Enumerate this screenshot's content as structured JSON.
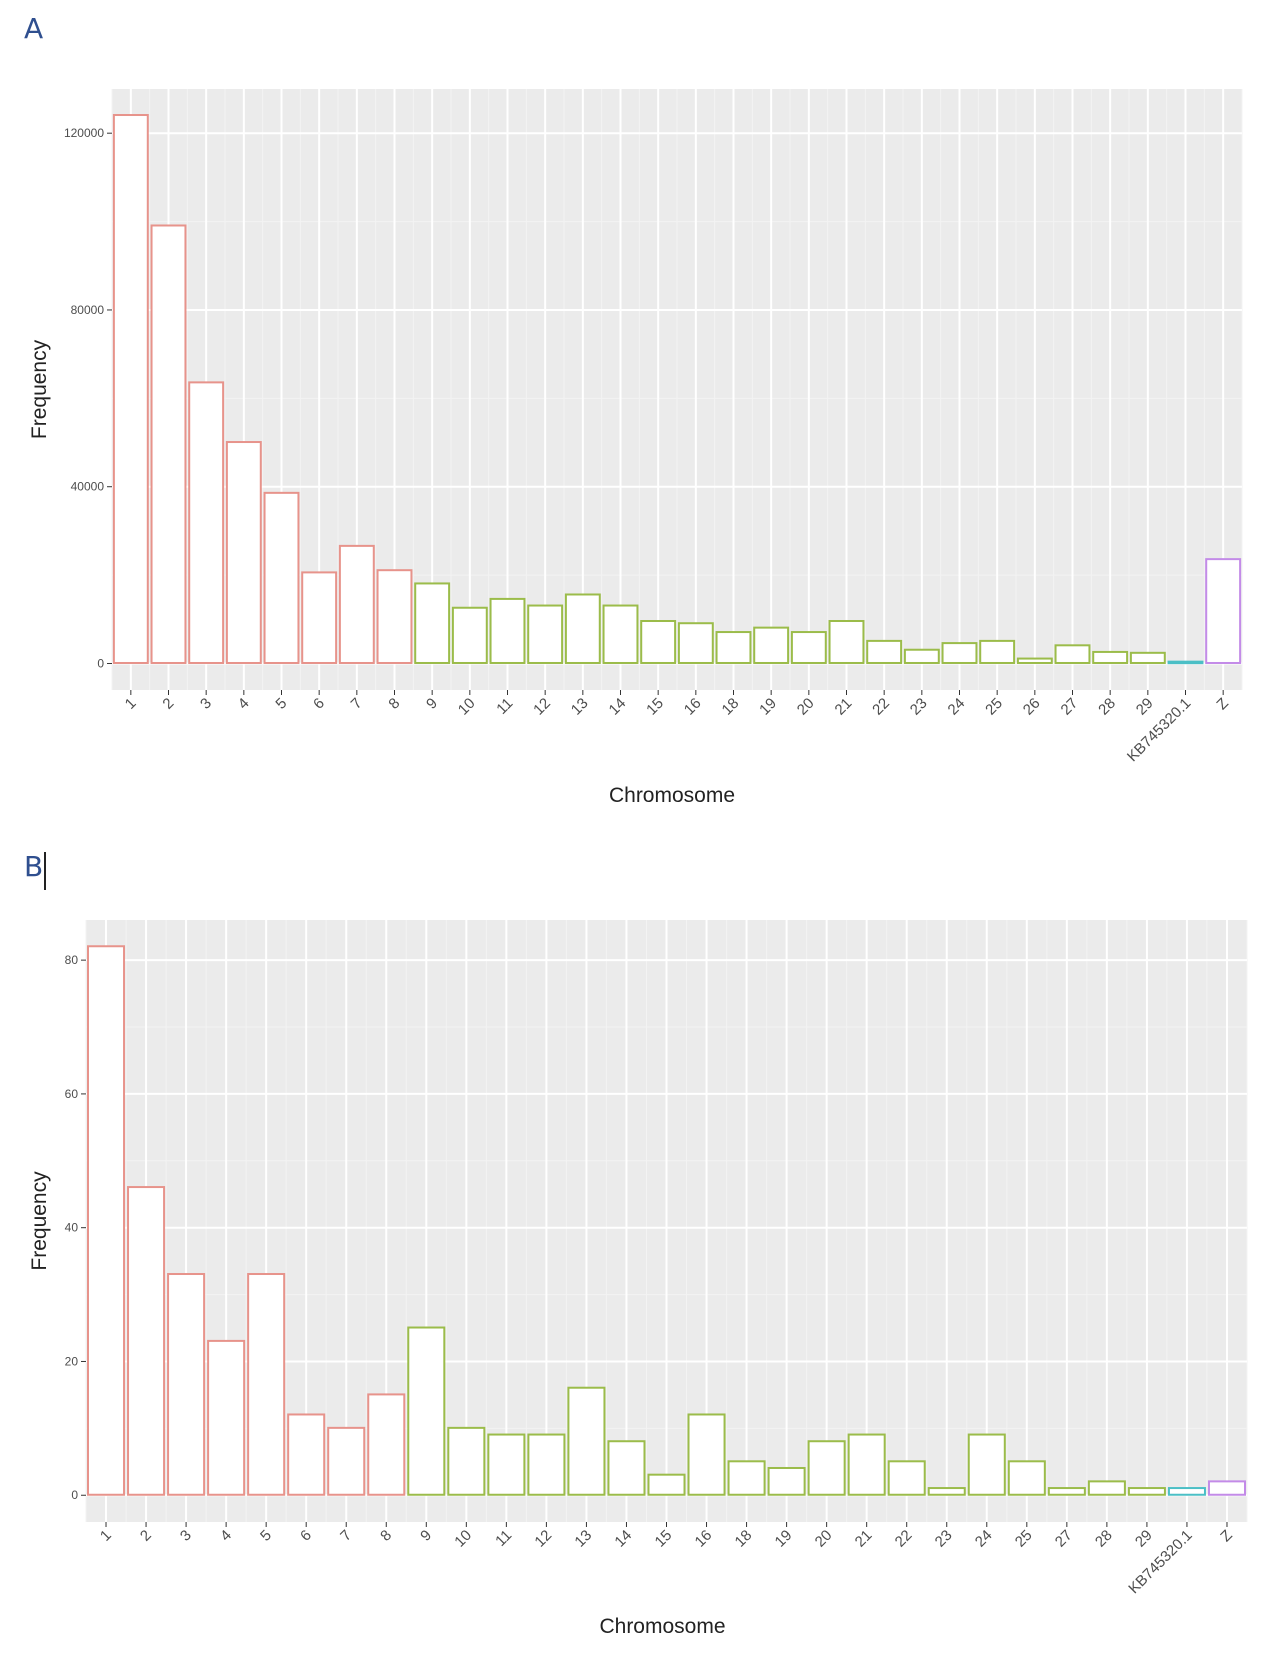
{
  "panels": [
    {
      "label": "A"
    },
    {
      "label": "B"
    }
  ],
  "colors": {
    "panel_background": "#ebebeb",
    "grid_major": "#ffffff",
    "grid_minor": "#f3f3f3",
    "bar_fill": "#ffffff",
    "group1": "#e7938b",
    "group2": "#9bbc4a",
    "group3": "#4bbfc6",
    "group4": "#c38be8"
  },
  "chart_data": [
    {
      "type": "bar",
      "xlabel": "Chromosome",
      "ylabel": "Frequency",
      "ylim": [
        -6000,
        130000
      ],
      "yticks": [
        0,
        40000,
        80000,
        120000
      ],
      "ytick_labels": [
        "0",
        "40000",
        "80000",
        "120000"
      ],
      "grid": true,
      "categories": [
        "1",
        "2",
        "3",
        "4",
        "5",
        "6",
        "7",
        "8",
        "9",
        "10",
        "11",
        "12",
        "13",
        "14",
        "15",
        "16",
        "18",
        "19",
        "20",
        "21",
        "22",
        "23",
        "24",
        "25",
        "26",
        "27",
        "28",
        "29",
        "KB745320.1",
        "Z"
      ],
      "values": [
        124000,
        99000,
        63500,
        50000,
        38500,
        20500,
        26500,
        21000,
        18000,
        12500,
        14500,
        13000,
        15500,
        13000,
        9500,
        9000,
        7000,
        8000,
        7000,
        9500,
        5000,
        3000,
        4500,
        5000,
        1000,
        4000,
        2500,
        2300,
        300,
        23500
      ],
      "color_groups": [
        "group1",
        "group1",
        "group1",
        "group1",
        "group1",
        "group1",
        "group1",
        "group1",
        "group2",
        "group2",
        "group2",
        "group2",
        "group2",
        "group2",
        "group2",
        "group2",
        "group2",
        "group2",
        "group2",
        "group2",
        "group2",
        "group2",
        "group2",
        "group2",
        "group2",
        "group2",
        "group2",
        "group2",
        "group3",
        "group4"
      ]
    },
    {
      "type": "bar",
      "xlabel": "Chromosome",
      "ylabel": "Frequency",
      "ylim": [
        -4,
        86
      ],
      "yticks": [
        0,
        20,
        40,
        60,
        80
      ],
      "ytick_labels": [
        "0",
        "20",
        "40",
        "60",
        "80"
      ],
      "grid": true,
      "categories": [
        "1",
        "2",
        "3",
        "4",
        "5",
        "6",
        "7",
        "8",
        "9",
        "10",
        "11",
        "12",
        "13",
        "14",
        "15",
        "16",
        "18",
        "19",
        "20",
        "21",
        "22",
        "23",
        "24",
        "25",
        "27",
        "28",
        "29",
        "KB745320.1",
        "Z"
      ],
      "values": [
        82,
        46,
        33,
        23,
        33,
        12,
        10,
        15,
        25,
        10,
        9,
        9,
        16,
        8,
        3,
        12,
        5,
        4,
        8,
        9,
        5,
        1,
        9,
        5,
        1,
        2,
        1,
        1,
        2
      ],
      "color_groups": [
        "group1",
        "group1",
        "group1",
        "group1",
        "group1",
        "group1",
        "group1",
        "group1",
        "group2",
        "group2",
        "group2",
        "group2",
        "group2",
        "group2",
        "group2",
        "group2",
        "group2",
        "group2",
        "group2",
        "group2",
        "group2",
        "group2",
        "group2",
        "group2",
        "group2",
        "group2",
        "group2",
        "group3",
        "group4"
      ]
    }
  ]
}
